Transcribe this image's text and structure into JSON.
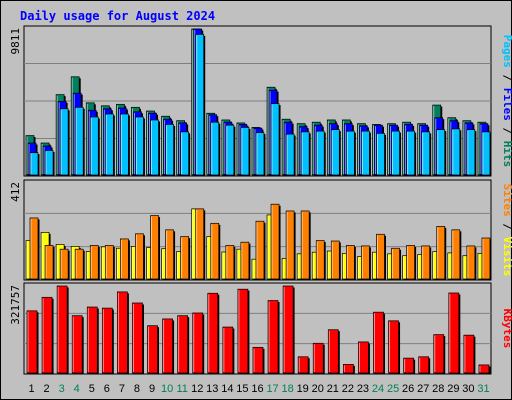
{
  "title": "Daily usage for August 2024",
  "colors": {
    "frame": "#c0c0c0",
    "plot_bg": "#c0c0c0",
    "grid": "#808080",
    "title": "#0000ff",
    "weekday": "#000000",
    "weekend": "#00805c",
    "hits": "#00805c",
    "files": "#0000ff",
    "pages": "#00c0ff",
    "visits": "#ffff00",
    "sites": "#ff8000",
    "kbytes": "#ff0000"
  },
  "side_labels": {
    "top": [
      {
        "text": "Pages",
        "color": "#00c0ff"
      },
      {
        "text": " / ",
        "color": "#000000"
      },
      {
        "text": "Files",
        "color": "#0000ff"
      },
      {
        "text": " / ",
        "color": "#000000"
      },
      {
        "text": "Hits",
        "color": "#00805c"
      }
    ],
    "middle": [
      {
        "text": "Sites",
        "color": "#ff8000"
      },
      {
        "text": " / ",
        "color": "#000000"
      },
      {
        "text": "Visits",
        "color": "#ffff00"
      }
    ],
    "bottom": [
      {
        "text": "KBytes",
        "color": "#ff0000"
      }
    ]
  },
  "chart_data": {
    "type": "bar",
    "title": "Daily usage for August 2024",
    "categories": [
      "1",
      "2",
      "3",
      "4",
      "5",
      "6",
      "7",
      "8",
      "9",
      "10",
      "11",
      "12",
      "13",
      "14",
      "15",
      "16",
      "17",
      "18",
      "19",
      "20",
      "21",
      "22",
      "23",
      "24",
      "25",
      "26",
      "27",
      "28",
      "29",
      "30",
      "31"
    ],
    "weekend_days": [
      "3",
      "4",
      "10",
      "11",
      "17",
      "18",
      "24",
      "25",
      "31"
    ],
    "panels": [
      {
        "name": "hits-files-pages",
        "ymax_label": "9811",
        "ylim": [
          0,
          9811
        ],
        "series": [
          {
            "name": "Hits",
            "values": [
              2650,
              2150,
              5400,
              6600,
              4850,
              4650,
              4750,
              4550,
              4300,
              3950,
              3650,
              9811,
              4150,
              3700,
              3500,
              3200,
              5900,
              3750,
              3450,
              3550,
              3700,
              3700,
              3450,
              3400,
              3450,
              3550,
              3450,
              4700,
              3850,
              3650,
              3550
            ]
          },
          {
            "name": "Files",
            "values": [
              2150,
              1950,
              4950,
              5500,
              4350,
              4450,
              4500,
              4250,
              4150,
              3750,
              3500,
              9811,
              4050,
              3550,
              3400,
              3150,
              5700,
              3550,
              3250,
              3350,
              3450,
              3450,
              3300,
              3350,
              3350,
              3400,
              3350,
              3850,
              3650,
              3500,
              3450
            ]
          },
          {
            "name": "Pages",
            "values": [
              1500,
              1650,
              4450,
              4550,
              3900,
              4100,
              4100,
              3900,
              3700,
              3400,
              2900,
              9450,
              3550,
              3350,
              3200,
              2850,
              4800,
              2750,
              2900,
              2950,
              3050,
              2950,
              2950,
              2800,
              2950,
              2950,
              2900,
              3050,
              3100,
              3050,
              2900
            ]
          }
        ]
      },
      {
        "name": "visits-sites",
        "ymax_label": "412",
        "ylim": [
          0,
          412
        ],
        "series": [
          {
            "name": "Visits",
            "values": [
              165,
              200,
              148,
              140,
              118,
              138,
              132,
              140,
              135,
              130,
              118,
              301,
              182,
              116,
              128,
              85,
              275,
              88,
              108,
              115,
              120,
              110,
              96,
              115,
              108,
              100,
              105,
              118,
              112,
              100,
              110
            ]
          },
          {
            "name": "Sites",
            "values": [
              262,
              144,
              128,
              128,
              144,
              144,
              172,
              194,
              272,
              211,
              182,
              301,
              239,
              144,
              158,
              248,
              321,
              292,
              292,
              165,
              163,
              144,
              142,
              192,
              132,
              144,
              142,
              226,
              211,
              142,
              176
            ]
          }
        ]
      },
      {
        "name": "kbytes",
        "ymax_label": "321757",
        "ylim": [
          0,
          321757
        ],
        "series": [
          {
            "name": "KBytes",
            "values": [
              230000,
              280000,
              321757,
              212000,
              244000,
              240000,
              300000,
              259000,
              175000,
              200000,
              212000,
              222000,
              295000,
              170000,
              310000,
              95000,
              268000,
              321757,
              60000,
              110000,
              160000,
              32000,
              115000,
              225000,
              193000,
              55000,
              60000,
              142000,
              296000,
              140000,
              30000
            ]
          }
        ]
      }
    ]
  }
}
